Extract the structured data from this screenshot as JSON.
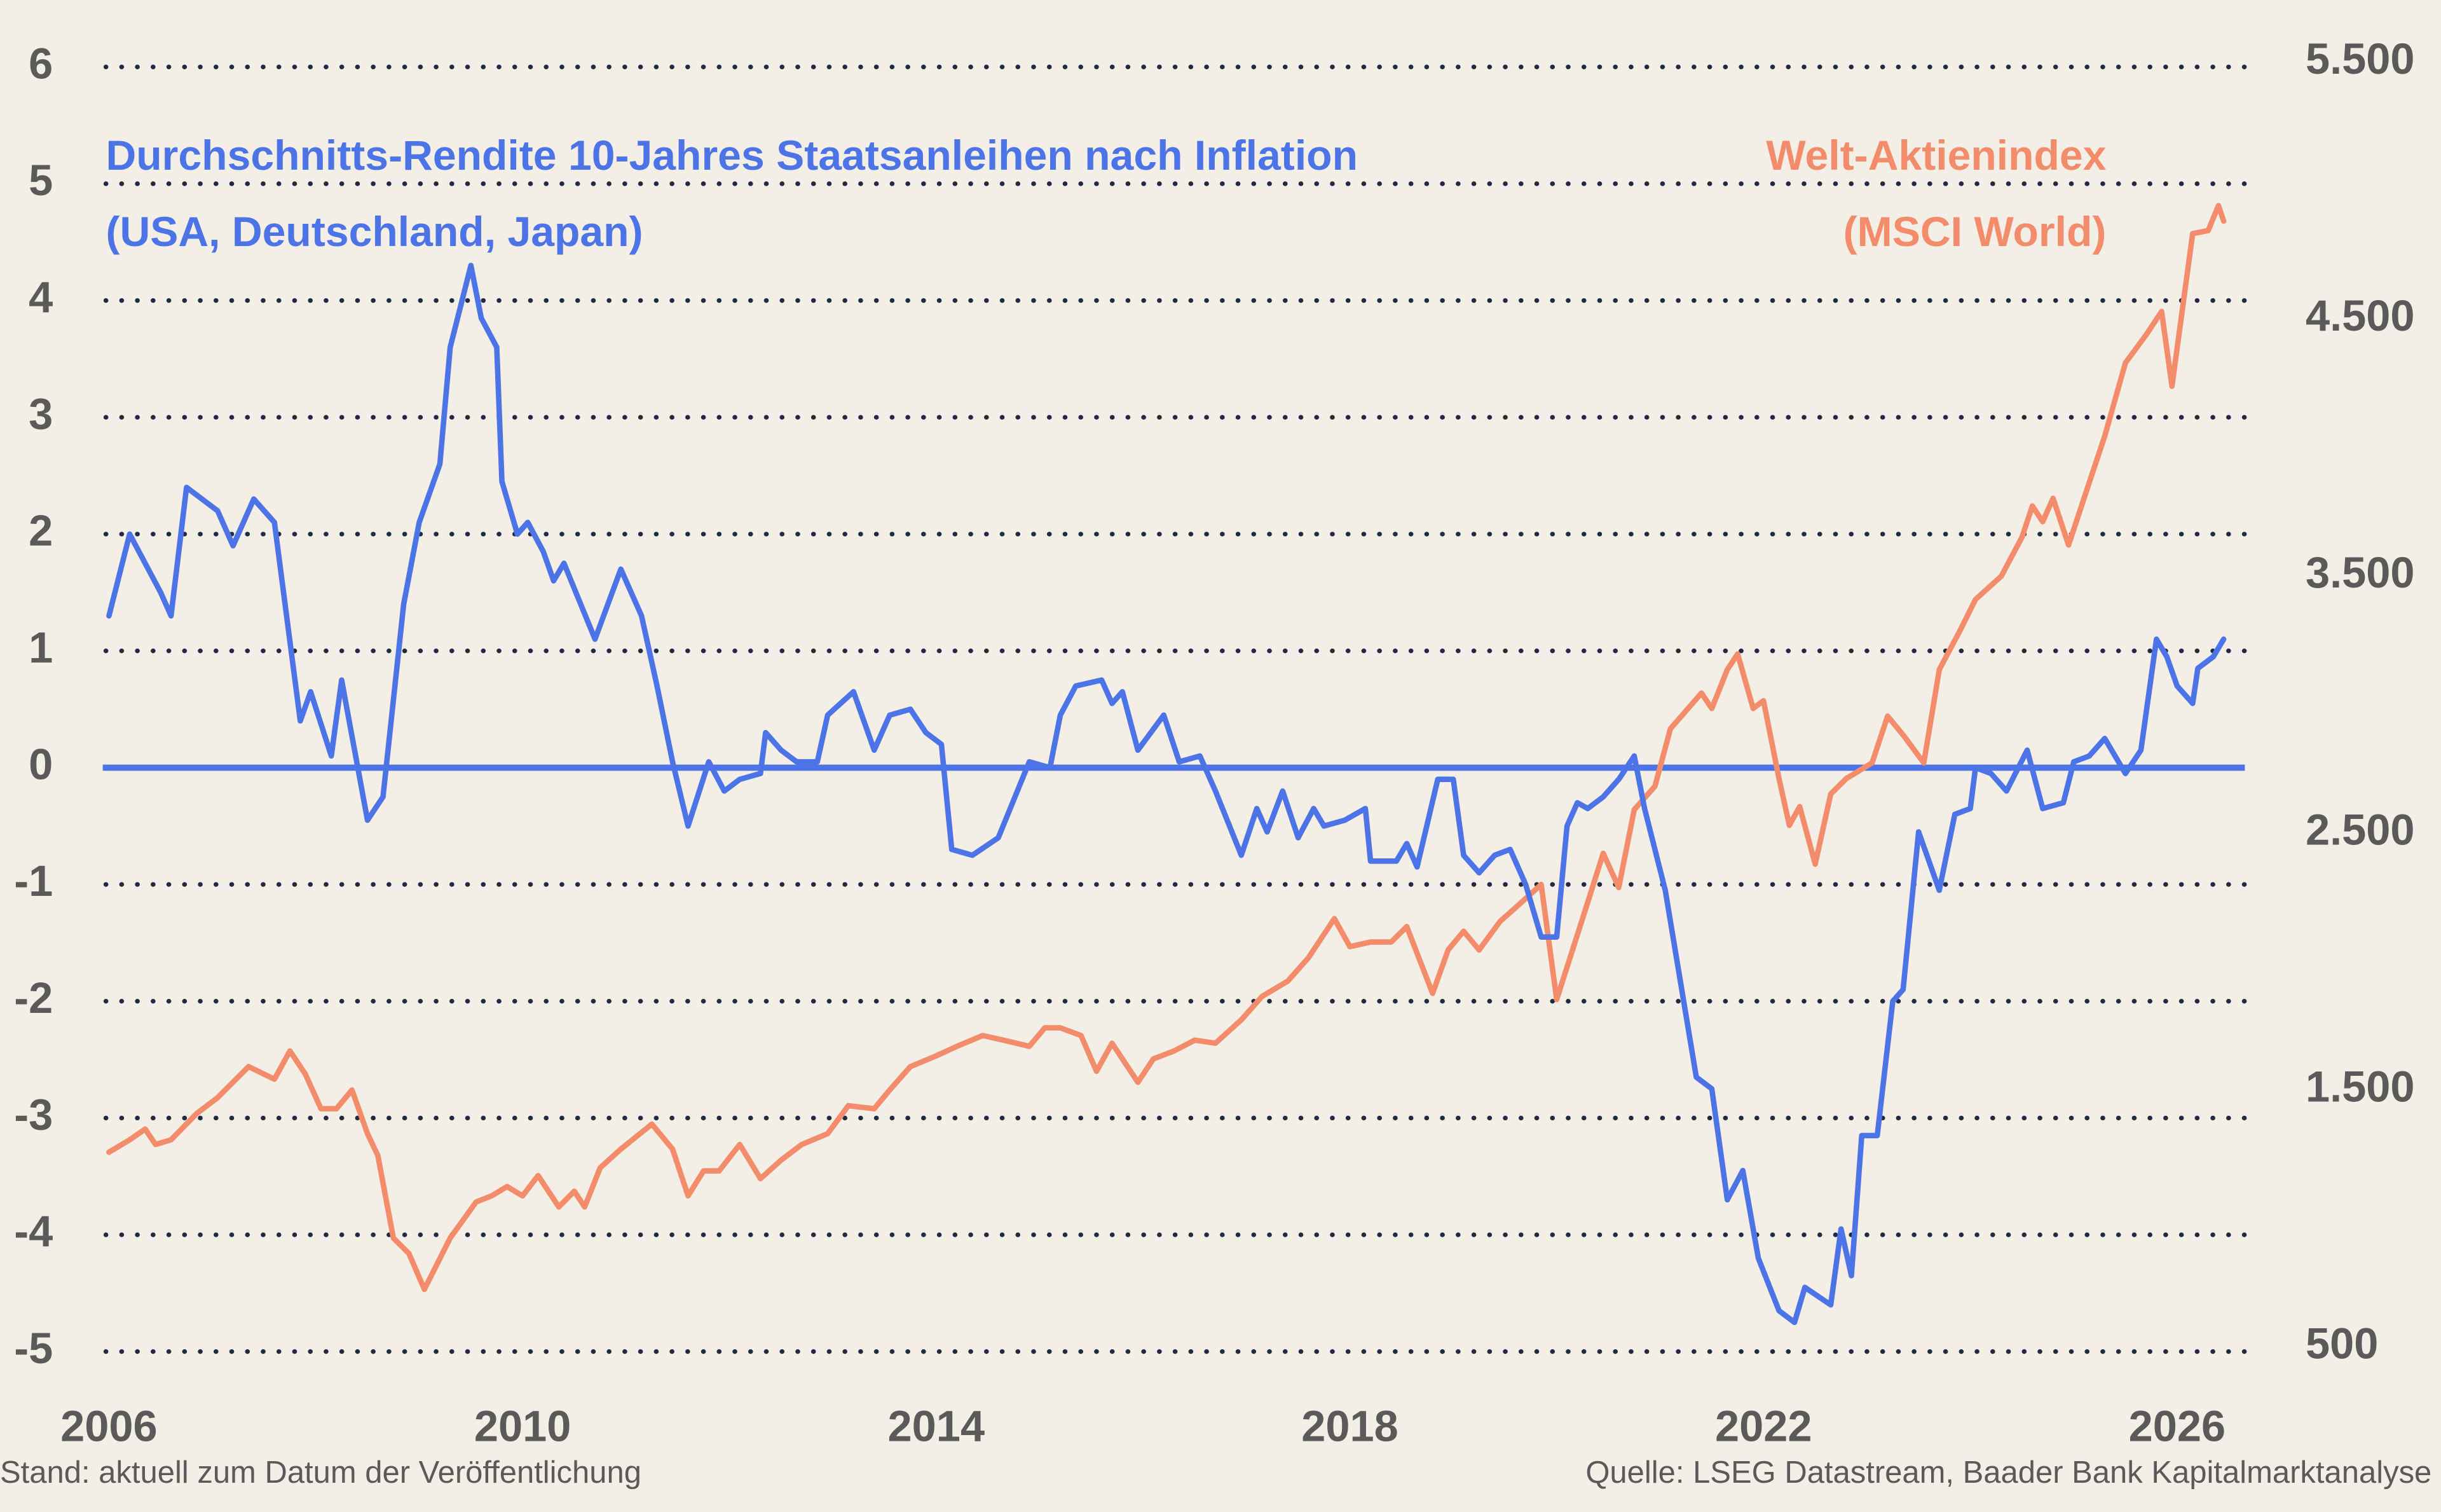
{
  "chart_data": {
    "type": "line",
    "note": "Stand: aktuell zum Datum der Veröffentlichung",
    "source": "Quelle: LSEG Datastream, Baader Bank Kapitalmarktanalyse",
    "xlim": [
      2006,
      2026.7
    ],
    "xticks": [
      2006,
      2010,
      2014,
      2018,
      2022,
      2026
    ],
    "ylim": [
      -5,
      6
    ],
    "yticks": [
      -5,
      -4,
      -3,
      -2,
      -1,
      0,
      1,
      2,
      3,
      4,
      5,
      6
    ],
    "y2lim": [
      500,
      5500
    ],
    "y2ticks": [
      500,
      {
        "value": 1500,
        "label": "1.500"
      },
      {
        "value": 2500,
        "label": "2.500"
      },
      {
        "value": 3500,
        "label": "3.500"
      },
      {
        "value": 4500,
        "label": "4.500"
      },
      {
        "value": 5500,
        "label": "5.500"
      }
    ],
    "grid": true,
    "series": [
      {
        "name": "Welt-Aktienindex\n(MSCI World)",
        "color": "#f28c6a",
        "axis": "y2",
        "x": [
          2006.0,
          2006.2,
          2006.35,
          2006.45,
          2006.6,
          2006.85,
          2007.05,
          2007.35,
          2007.6,
          2007.75,
          2007.9,
          2008.05,
          2008.2,
          2008.35,
          2008.5,
          2008.6,
          2008.75,
          2008.9,
          2009.05,
          2009.3,
          2009.55,
          2009.7,
          2009.85,
          2010.0,
          2010.15,
          2010.35,
          2010.5,
          2010.6,
          2010.75,
          2010.95,
          2011.25,
          2011.45,
          2011.6,
          2011.75,
          2011.9,
          2012.1,
          2012.3,
          2012.5,
          2012.7,
          2012.95,
          2013.15,
          2013.4,
          2013.55,
          2013.75,
          2014.0,
          2014.2,
          2014.45,
          2014.65,
          2014.9,
          2015.05,
          2015.2,
          2015.4,
          2015.55,
          2015.7,
          2015.95,
          2016.1,
          2016.3,
          2016.5,
          2016.7,
          2016.95,
          2017.15,
          2017.4,
          2017.6,
          2017.85,
          2018.0,
          2018.2,
          2018.4,
          2018.55,
          2018.8,
          2018.95,
          2019.1,
          2019.25,
          2019.45,
          2019.65,
          2019.85,
          2020.0,
          2020.25,
          2020.45,
          2020.6,
          2020.75,
          2020.95,
          2021.1,
          2021.4,
          2021.5,
          2021.65,
          2021.75,
          2021.9,
          2022.0,
          2022.15,
          2022.25,
          2022.35,
          2022.5,
          2022.65,
          2022.8,
          2023.05,
          2023.2,
          2023.35,
          2023.55,
          2023.7,
          2023.9,
          2024.05,
          2024.3,
          2024.5,
          2024.6,
          2024.7,
          2024.8,
          2024.95,
          2025.15,
          2025.3,
          2025.5,
          2025.7,
          2025.85,
          2025.95,
          2026.15,
          2026.3,
          2026.4,
          2026.45
        ],
        "values": [
          1258,
          1306,
          1348,
          1288,
          1306,
          1409,
          1470,
          1591,
          1542,
          1652,
          1561,
          1427,
          1427,
          1500,
          1330,
          1245,
          924,
          864,
          724,
          924,
          1064,
          1088,
          1124,
          1088,
          1167,
          1045,
          1106,
          1045,
          1197,
          1270,
          1367,
          1270,
          1088,
          1185,
          1185,
          1288,
          1155,
          1227,
          1288,
          1330,
          1439,
          1427,
          1500,
          1591,
          1633,
          1670,
          1712,
          1694,
          1670,
          1742,
          1742,
          1712,
          1573,
          1682,
          1530,
          1621,
          1652,
          1694,
          1682,
          1773,
          1864,
          1924,
          2015,
          2167,
          2058,
          2076,
          2076,
          2136,
          1876,
          2045,
          2118,
          2045,
          2155,
          2227,
          2300,
          1852,
          2167,
          2421,
          2288,
          2591,
          2682,
          2906,
          3045,
          2985,
          3136,
          3197,
          2985,
          3015,
          2712,
          2530,
          2603,
          2379,
          2652,
          2712,
          2773,
          2955,
          2882,
          2773,
          3136,
          3288,
          3409,
          3500,
          3652,
          3773,
          3712,
          3803,
          3621,
          3864,
          4045,
          4330,
          4439,
          4530,
          4239,
          4833,
          4845,
          4942,
          4882
        ]
      },
      {
        "name": "Durchschnitts-Rendite 10-Jahres Staatsanleihen nach Inflation\n(USA, Deutschland, Japan)",
        "color": "#4d74e6",
        "axis": "y",
        "x": [
          2006.0,
          2006.2,
          2006.5,
          2006.6,
          2006.75,
          2007.05,
          2007.2,
          2007.4,
          2007.6,
          2007.85,
          2007.95,
          2008.15,
          2008.25,
          2008.5,
          2008.65,
          2008.85,
          2009.0,
          2009.2,
          2009.3,
          2009.5,
          2009.6,
          2009.75,
          2009.8,
          2009.95,
          2010.05,
          2010.2,
          2010.3,
          2010.4,
          2010.7,
          2010.95,
          2011.15,
          2011.3,
          2011.45,
          2011.6,
          2011.8,
          2011.95,
          2012.1,
          2012.3,
          2012.35,
          2012.5,
          2012.65,
          2012.85,
          2012.95,
          2013.2,
          2013.4,
          2013.55,
          2013.75,
          2013.9,
          2014.05,
          2014.15,
          2014.35,
          2014.6,
          2014.9,
          2015.1,
          2015.2,
          2015.35,
          2015.6,
          2015.7,
          2015.8,
          2015.95,
          2016.2,
          2016.35,
          2016.55,
          2016.7,
          2016.95,
          2017.1,
          2017.2,
          2017.35,
          2017.5,
          2017.65,
          2017.75,
          2017.95,
          2018.15,
          2018.2,
          2018.45,
          2018.55,
          2018.65,
          2018.85,
          2019.0,
          2019.1,
          2019.25,
          2019.4,
          2019.55,
          2019.7,
          2019.85,
          2020.0,
          2020.1,
          2020.2,
          2020.3,
          2020.45,
          2020.6,
          2020.75,
          2020.85,
          2021.05,
          2021.2,
          2021.35,
          2021.5,
          2021.65,
          2021.8,
          2021.95,
          2022.15,
          2022.3,
          2022.4,
          2022.65,
          2022.75,
          2022.85,
          2022.95,
          2023.1,
          2023.25,
          2023.35,
          2023.5,
          2023.7,
          2023.85,
          2024.0,
          2024.05,
          2024.2,
          2024.35,
          2024.55,
          2024.7,
          2024.9,
          2025.0,
          2025.15,
          2025.3,
          2025.5,
          2025.65,
          2025.8,
          2025.9,
          2026.0,
          2026.15,
          2026.2,
          2026.35,
          2026.45
        ],
        "values": [
          1.3,
          2.0,
          1.5,
          1.3,
          2.4,
          2.2,
          1.9,
          2.3,
          2.1,
          0.4,
          0.65,
          0.1,
          0.75,
          -0.45,
          -0.25,
          1.4,
          2.1,
          2.6,
          3.6,
          4.3,
          3.85,
          3.6,
          2.45,
          2.0,
          2.1,
          1.85,
          1.6,
          1.75,
          1.1,
          1.7,
          1.3,
          0.7,
          0.05,
          -0.5,
          0.05,
          -0.2,
          -0.1,
          -0.05,
          0.3,
          0.15,
          0.05,
          0.05,
          0.45,
          0.65,
          0.15,
          0.45,
          0.5,
          0.3,
          0.2,
          -0.7,
          -0.75,
          -0.6,
          0.05,
          0,
          0.45,
          0.7,
          0.75,
          0.55,
          0.65,
          0.15,
          0.45,
          0.05,
          0.1,
          -0.2,
          -0.75,
          -0.35,
          -0.55,
          -0.2,
          -0.6,
          -0.35,
          -0.5,
          -0.45,
          -0.35,
          -0.8,
          -0.8,
          -0.65,
          -0.85,
          -0.1,
          -0.1,
          -0.75,
          -0.9,
          -0.75,
          -0.7,
          -1.0,
          -1.45,
          -1.45,
          -0.5,
          -0.3,
          -0.35,
          -0.25,
          -0.1,
          0.1,
          -0.35,
          -1.05,
          -1.85,
          -2.65,
          -2.75,
          -3.7,
          -3.45,
          -4.2,
          -4.65,
          -4.75,
          -4.45,
          -4.6,
          -3.95,
          -4.35,
          -3.15,
          -3.15,
          -2.0,
          -1.9,
          -0.55,
          -1.05,
          -0.4,
          -0.35,
          0,
          -0.05,
          -0.2,
          0.15,
          -0.35,
          -0.3,
          0.05,
          0.1,
          0.25,
          -0.05,
          0.15,
          1.1,
          0.95,
          0.7,
          0.55,
          0.85,
          0.95,
          1.1
        ]
      }
    ]
  }
}
